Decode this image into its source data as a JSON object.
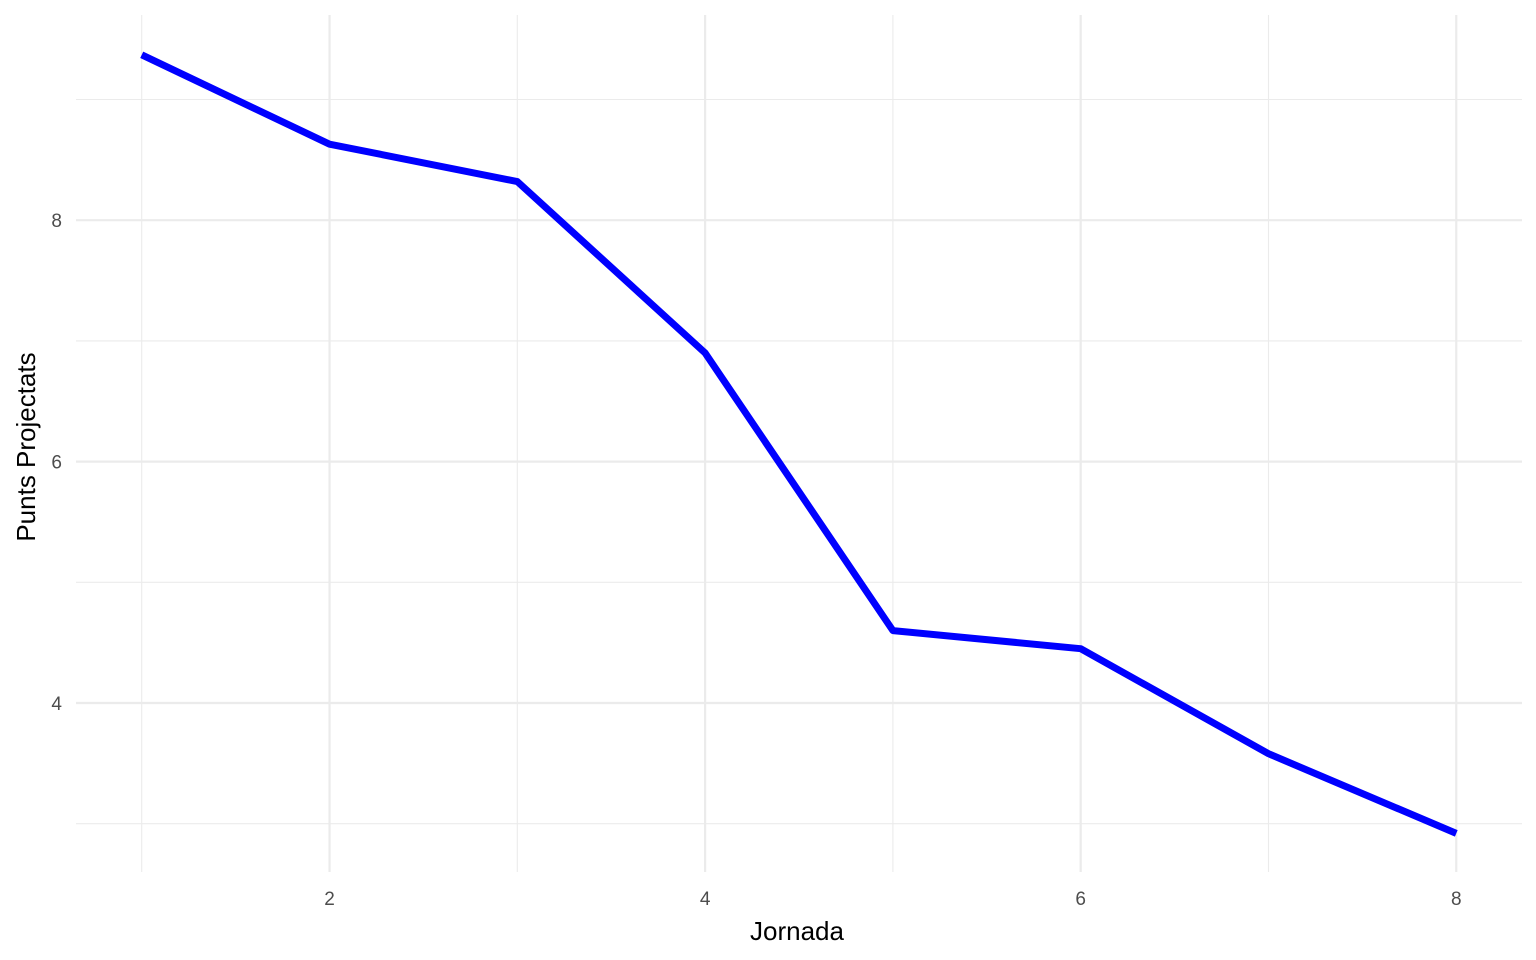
{
  "chart_data": {
    "type": "line",
    "title": "",
    "xlabel": "Jornada",
    "ylabel": "Punts Projectats",
    "x": [
      1,
      2,
      3,
      4,
      5,
      6,
      7,
      8
    ],
    "series": [
      {
        "values": [
          9.37,
          8.63,
          8.32,
          6.9,
          4.6,
          4.45,
          3.58,
          2.92
        ],
        "color": "#0000ff"
      }
    ],
    "xlim": [
      0.65,
      8.35
    ],
    "ylim": [
      2.6,
      9.7
    ],
    "x_ticks": [
      2,
      4,
      6,
      8
    ],
    "y_ticks": [
      4,
      6,
      8
    ],
    "x_minor": [
      1,
      3,
      5,
      7
    ],
    "y_minor": [
      3,
      5,
      7,
      9
    ],
    "grid": true,
    "legend": "none",
    "background": "#ffffff",
    "grid_color": "#ebebeb"
  }
}
